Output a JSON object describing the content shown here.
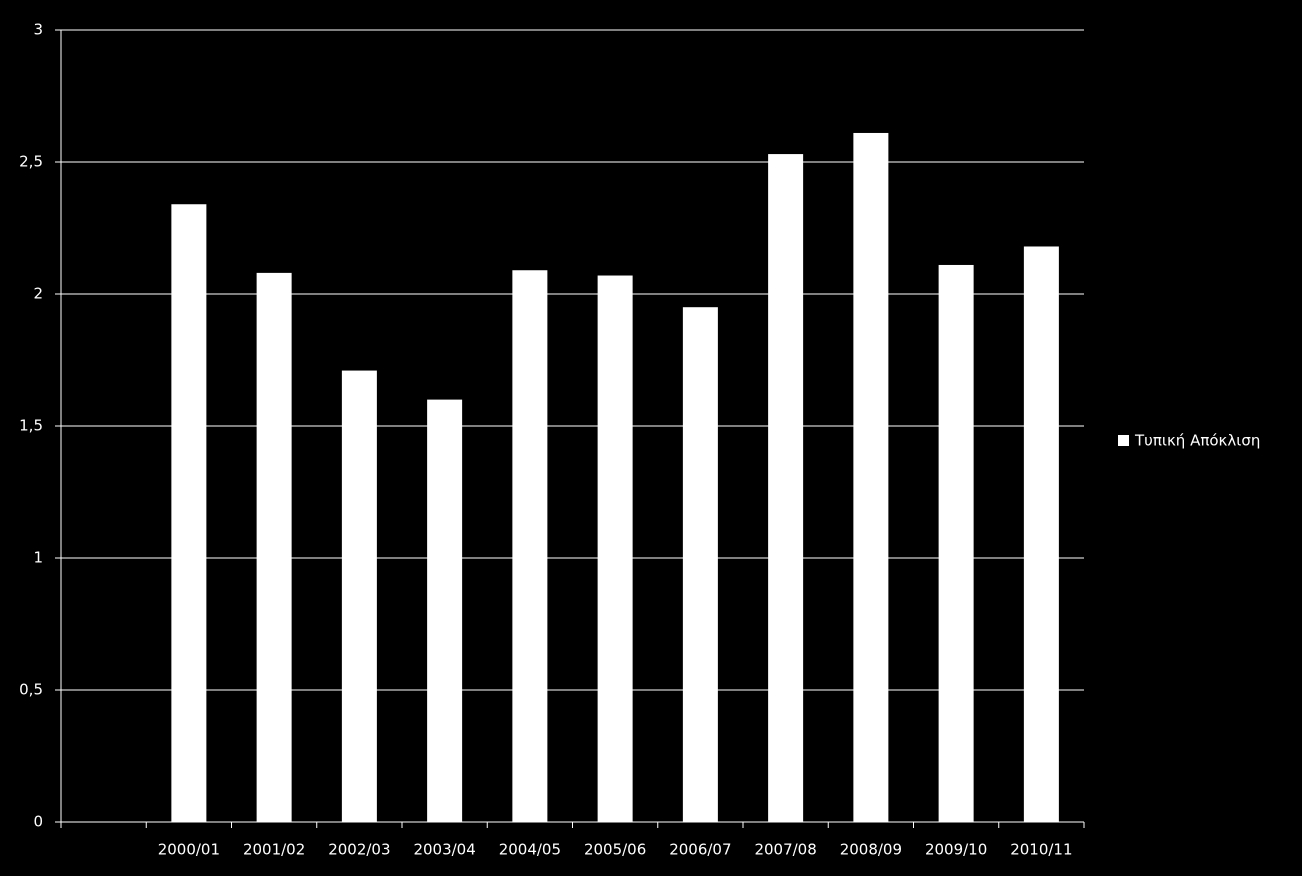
{
  "chart_data": {
    "type": "bar",
    "categories": [
      null,
      "2000/01",
      "2001/02",
      "2002/03",
      "2003/04",
      "2004/05",
      "2005/06",
      "2006/07",
      "2007/08",
      "2008/09",
      "2009/10",
      "2010/11"
    ],
    "series": [
      {
        "name": "Τυπική Απόκλιση",
        "color": "#ffffff",
        "values": [
          null,
          2.34,
          2.08,
          1.71,
          1.6,
          2.09,
          2.07,
          1.95,
          2.53,
          2.61,
          2.11,
          2.18
        ]
      }
    ],
    "ylim": [
      0,
      3
    ],
    "yticks": [
      0,
      {
        "value": 0.5,
        "label": "0,5"
      },
      1,
      {
        "value": 1.5,
        "label": "1,5"
      },
      2,
      {
        "value": 2.5,
        "label": "2,5"
      },
      3
    ],
    "grid": true,
    "legend": "right"
  }
}
